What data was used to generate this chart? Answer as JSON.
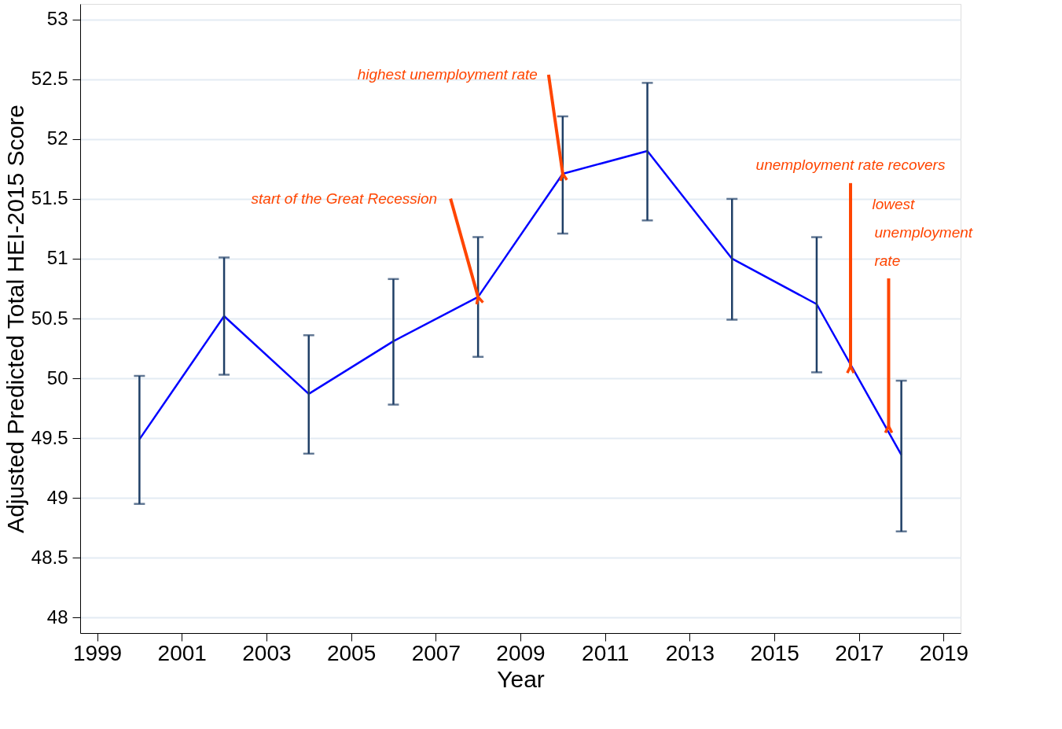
{
  "chart_data": {
    "type": "line",
    "xlabel": "Year",
    "ylabel": "Adjusted Predicted Total HEI-2015 Score",
    "x": [
      2000,
      2002,
      2004,
      2006,
      2008,
      2010,
      2012,
      2014,
      2016,
      2018
    ],
    "series": [
      {
        "color": "#0000ff",
        "values": [
          49.49,
          50.52,
          49.87,
          50.31,
          50.68,
          51.71,
          51.9,
          51.0,
          50.62,
          49.36
        ],
        "errors": [
          [
            48.95,
            50.02
          ],
          [
            50.03,
            51.01
          ],
          [
            49.37,
            50.36
          ],
          [
            49.78,
            50.83
          ],
          [
            50.18,
            51.18
          ],
          [
            51.21,
            52.19
          ],
          [
            51.32,
            52.47
          ],
          [
            50.49,
            51.5
          ],
          [
            50.05,
            51.18
          ],
          [
            48.72,
            49.98
          ]
        ]
      }
    ],
    "xlim": [
      1998.6,
      2019.4
    ],
    "xticks": [
      1999,
      2001,
      2003,
      2005,
      2007,
      2009,
      2011,
      2013,
      2015,
      2017,
      2019
    ],
    "ylim": [
      47.87,
      53.13
    ],
    "yticks": [
      48,
      48.5,
      49,
      49.5,
      50,
      50.5,
      51,
      51.5,
      52,
      52.5,
      53
    ],
    "grid": "y",
    "marker": "none",
    "line_style": "solid",
    "annotations": [
      {
        "text": "start of the Great Recession",
        "x": 2008,
        "y": 50.68
      },
      {
        "text": "highest unemployment rate",
        "x": 2010,
        "y": 51.71
      },
      {
        "text": "unemployment rate recovers",
        "x": 2016.8,
        "y": 50.1
      },
      {
        "text": "lowest unemployment rate",
        "x": 2017.7,
        "y": 49.6
      }
    ]
  }
}
